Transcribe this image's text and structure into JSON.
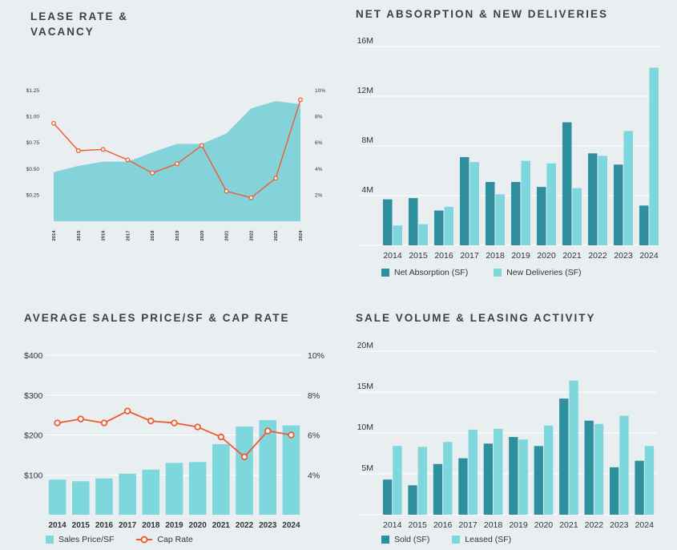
{
  "colors": {
    "teal_dark": "#2e8f9e",
    "teal_light": "#7fd7de",
    "area": "#85d3da",
    "red": "#ef5b2f",
    "grid": "#ffffff",
    "text": "#2e3438"
  },
  "chart_data": [
    {
      "id": "lease",
      "title": "LEASE RATE &\nVACANCY",
      "type": "area",
      "categories": [
        "2014",
        "2015",
        "2016",
        "2017",
        "2018",
        "2019",
        "2020",
        "2021",
        "2022",
        "2023",
        "2024"
      ],
      "series": [
        {
          "name": "Lease Rate",
          "type": "area",
          "axis": "left",
          "values": [
            0.47,
            0.53,
            0.57,
            0.57,
            0.66,
            0.74,
            0.74,
            0.84,
            1.08,
            1.15,
            1.12
          ]
        },
        {
          "name": "Vacancy",
          "type": "line",
          "axis": "right",
          "values": [
            7.5,
            5.4,
            5.5,
            4.7,
            3.7,
            4.4,
            5.8,
            2.3,
            1.8,
            3.3,
            9.3
          ]
        }
      ],
      "yleft": {
        "ticks": [
          "$0.25",
          "$0.50",
          "$0.75",
          "$1.00",
          "$1.25"
        ],
        "range": [
          0,
          1.35
        ]
      },
      "yright": {
        "ticks": [
          "2%",
          "4%",
          "6%",
          "8%",
          "10%"
        ],
        "range": [
          0,
          10.8
        ]
      }
    },
    {
      "id": "absorption",
      "title": "NET ABSORPTION & NEW DELIVERIES",
      "type": "bar",
      "categories": [
        "2014",
        "2015",
        "2016",
        "2017",
        "2018",
        "2019",
        "2020",
        "2021",
        "2022",
        "2023",
        "2024"
      ],
      "series": [
        {
          "name": "Net Absorption (SF)",
          "values": [
            3.7,
            3.8,
            2.8,
            7.1,
            5.1,
            5.1,
            4.7,
            9.9,
            7.4,
            6.5,
            3.2
          ]
        },
        {
          "name": "New Deliveries (SF)",
          "values": [
            1.6,
            1.7,
            3.1,
            6.7,
            4.1,
            6.8,
            6.6,
            4.6,
            7.2,
            9.2,
            14.3
          ]
        }
      ],
      "yleft": {
        "ticks": [
          "4M",
          "8M",
          "12M",
          "16M"
        ],
        "range": [
          0,
          16
        ]
      }
    },
    {
      "id": "price",
      "title": "AVERAGE SALES PRICE/SF & CAP RATE",
      "type": "bar",
      "categories": [
        "2014",
        "2015",
        "2016",
        "2017",
        "2018",
        "2019",
        "2020",
        "2021",
        "2022",
        "2023",
        "2024"
      ],
      "series": [
        {
          "name": "Sales Price/SF",
          "type": "bar",
          "axis": "left",
          "values": [
            88,
            84,
            91,
            103,
            113,
            130,
            132,
            177,
            221,
            237,
            224
          ]
        },
        {
          "name": "Cap Rate",
          "type": "line",
          "axis": "right",
          "values": [
            6.6,
            6.8,
            6.6,
            7.2,
            6.7,
            6.6,
            6.4,
            5.9,
            4.9,
            6.2,
            6.0
          ]
        }
      ],
      "yleft": {
        "ticks": [
          "$100",
          "$200",
          "$300",
          "$400"
        ],
        "range": [
          0,
          400
        ]
      },
      "yright": {
        "ticks": [
          "4%",
          "6%",
          "8%",
          "10%"
        ],
        "range": [
          2,
          10
        ]
      }
    },
    {
      "id": "volume",
      "title": "SALE VOLUME & LEASING ACTIVITY",
      "type": "bar",
      "categories": [
        "2014",
        "2015",
        "2016",
        "2017",
        "2018",
        "2019",
        "2020",
        "2021",
        "2022",
        "2023",
        "2024"
      ],
      "series": [
        {
          "name": "Sold (SF)",
          "values": [
            4.3,
            3.6,
            6.2,
            6.9,
            8.7,
            9.5,
            8.4,
            14.2,
            11.5,
            5.8,
            6.6
          ]
        },
        {
          "name": "Leased (SF)",
          "values": [
            8.4,
            8.3,
            8.9,
            10.4,
            10.5,
            9.2,
            10.9,
            16.4,
            11.1,
            12.1,
            8.4
          ]
        }
      ],
      "yleft": {
        "ticks": [
          "5M",
          "10M",
          "15M",
          "20M"
        ],
        "range": [
          0,
          20
        ]
      }
    }
  ]
}
